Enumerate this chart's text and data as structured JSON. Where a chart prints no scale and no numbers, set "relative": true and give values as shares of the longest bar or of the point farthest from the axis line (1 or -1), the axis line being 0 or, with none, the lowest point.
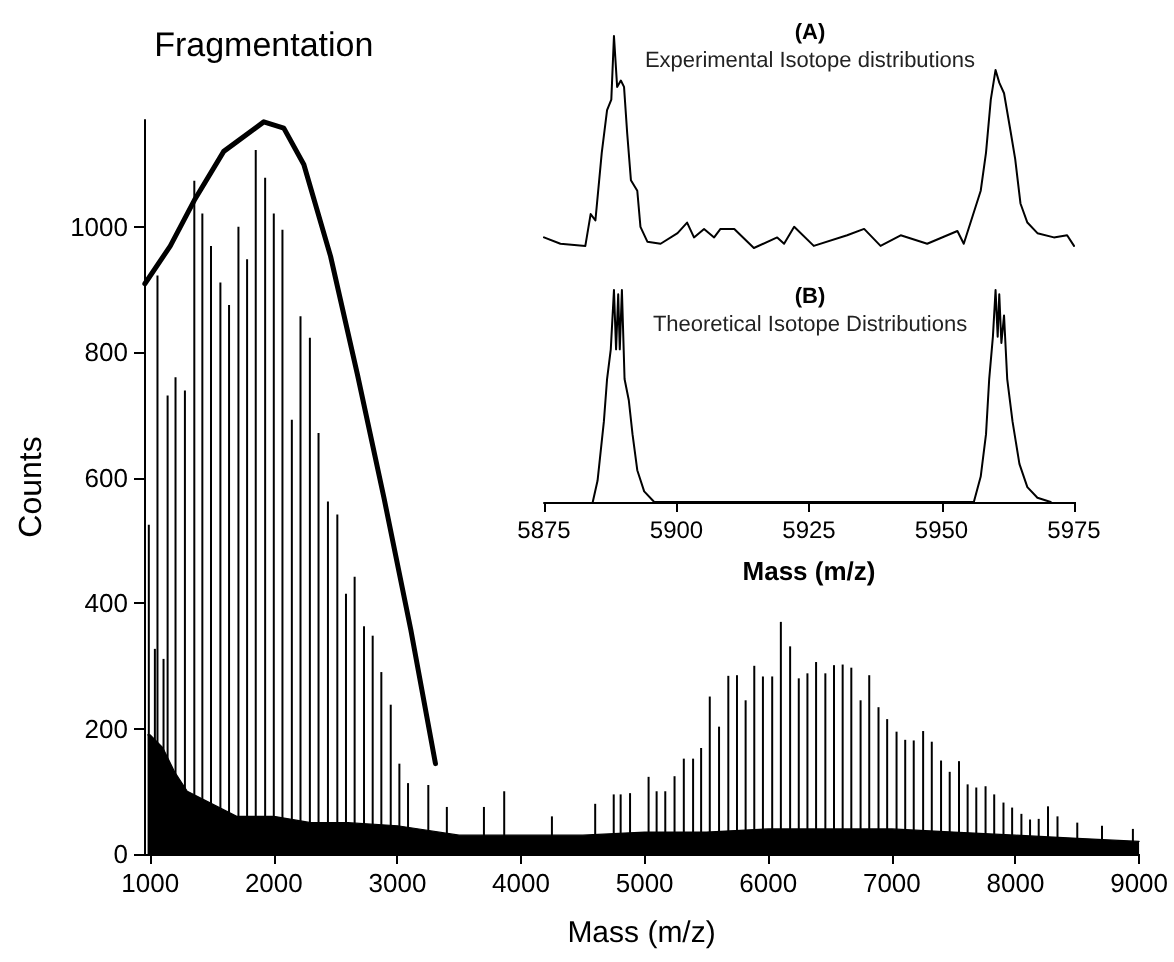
{
  "chart_data": [
    {
      "type": "bar",
      "xlabel": "Mass (m/z)",
      "ylabel": "Counts",
      "xlim": [
        950,
        9000
      ],
      "ylim": [
        0,
        1170
      ],
      "xticks": [
        1000,
        2000,
        3000,
        4000,
        5000,
        6000,
        7000,
        8000,
        9000
      ],
      "yticks": [
        0,
        200,
        400,
        600,
        800,
        1000
      ],
      "grid": false,
      "marker": "none",
      "annotations": [
        {
          "text": "Fragmentation",
          "x": 1919,
          "y": 1167
        }
      ],
      "series": [
        {
          "type": "area",
          "color": "#000000",
          "x": [
            980,
            1000,
            1100,
            1200,
            1300,
            1500,
            1700,
            2000,
            2300,
            2600,
            3000,
            3500,
            4000,
            4500,
            5000,
            5500,
            6000,
            6500,
            7000,
            7500,
            8000,
            8500,
            9000
          ],
          "values": [
            190,
            190,
            170,
            130,
            100,
            80,
            60,
            60,
            50,
            50,
            45,
            30,
            30,
            30,
            35,
            35,
            40,
            40,
            40,
            35,
            30,
            25,
            20
          ]
        },
        {
          "color": "#000000",
          "x": [
            989,
            1038,
            1059,
            1108,
            1141,
            1205,
            1281,
            1357,
            1422,
            1492,
            1568,
            1638,
            1714,
            1784,
            1854,
            1930,
            2000,
            2070,
            2146,
            2216,
            2292,
            2362,
            2438,
            2514,
            2584,
            2654,
            2730,
            2800,
            2870,
            2946,
            3016,
            3086,
            3250,
            3400,
            3700,
            3864,
            4250,
            4600,
            4750,
            4806,
            4882,
            5032,
            5097,
            5167,
            5242,
            5317,
            5392,
            5457,
            5527,
            5602,
            5677,
            5747,
            5817,
            5887,
            5957,
            6032,
            6102,
            6177,
            6247,
            6317,
            6387,
            6462,
            6532,
            6602,
            6672,
            6747,
            6817,
            6892,
            6962,
            7038,
            7108,
            7177,
            7253,
            7323,
            7398,
            7468,
            7543,
            7613,
            7683,
            7758,
            7828,
            7903,
            7973,
            8048,
            8118,
            8188,
            8263,
            8340,
            8500,
            8700,
            8950
          ],
          "values": [
            525,
            327,
            922,
            311,
            731,
            760,
            739,
            1073,
            1021,
            969,
            911,
            875,
            1000,
            948,
            1122,
            1078,
            1021,
            995,
            692,
            857,
            823,
            671,
            562,
            541,
            415,
            442,
            363,
            348,
            290,
            238,
            144,
            113,
            110,
            75,
            75,
            100,
            60,
            80,
            95,
            95,
            97,
            123,
            100,
            100,
            124,
            152,
            152,
            169,
            251,
            203,
            284,
            285,
            245,
            300,
            283,
            283,
            370,
            331,
            280,
            288,
            306,
            288,
            301,
            302,
            297,
            245,
            285,
            234,
            215,
            195,
            182,
            181,
            196,
            179,
            149,
            131,
            148,
            111,
            106,
            108,
            95,
            82,
            74,
            64,
            55,
            56,
            76,
            60,
            50,
            45,
            40
          ]
        },
        {
          "type": "line",
          "color": "#000000",
          "x": [
            957,
            1162,
            1357,
            1595,
            1919,
            2081,
            2243,
            2459,
            2676,
            2892,
            3108,
            3308
          ],
          "values": [
            909,
            969,
            1042,
            1120,
            1167,
            1157,
            1099,
            953,
            765,
            567,
            358,
            144
          ]
        }
      ]
    },
    {
      "type": "line",
      "title": "(A)",
      "subtitle": "Experimental Isotope distributions",
      "relative": true,
      "tick_labels": false,
      "grid": false,
      "marker": "none",
      "xlim": [
        5875,
        5975
      ],
      "series": [
        {
          "color": "#000000",
          "x": [
            5875.0,
            5878.1,
            5882.8,
            5883.8,
            5884.7,
            5885.9,
            5886.9,
            5887.7,
            5888.2,
            5888.8,
            5889.5,
            5890.1,
            5890.7,
            5891.4,
            5892.6,
            5893.2,
            5894.5,
            5897.0,
            5900.2,
            5902.0,
            5903.3,
            5905.2,
            5907.1,
            5908.3,
            5910.9,
            5914.6,
            5919.0,
            5920.3,
            5922.2,
            5925.9,
            5932.2,
            5935.4,
            5938.5,
            5942.3,
            5947.3,
            5953.0,
            5954.2,
            5957.4,
            5958.4,
            5959.3,
            5960.2,
            5960.9,
            5961.8,
            5963.1,
            5963.9,
            5964.9,
            5966.2,
            5968.1,
            5971.2,
            5973.7,
            5975.0
          ],
          "values": [
            0.05,
            0.02,
            0.01,
            0.16,
            0.13,
            0.45,
            0.65,
            0.7,
            1.0,
            0.76,
            0.79,
            0.76,
            0.54,
            0.32,
            0.27,
            0.1,
            0.03,
            0.02,
            0.07,
            0.12,
            0.05,
            0.09,
            0.05,
            0.09,
            0.09,
            0.0,
            0.05,
            0.02,
            0.1,
            0.01,
            0.06,
            0.09,
            0.01,
            0.06,
            0.02,
            0.08,
            0.02,
            0.27,
            0.45,
            0.7,
            0.84,
            0.78,
            0.73,
            0.54,
            0.42,
            0.21,
            0.12,
            0.07,
            0.05,
            0.06,
            0.01
          ]
        }
      ]
    },
    {
      "type": "line",
      "title": "(B)",
      "subtitle": "Theoretical Isotope Distributions",
      "xlabel": "Mass (m/z)",
      "relative": true,
      "tick_labels": "x",
      "grid": false,
      "marker": "none",
      "xlim": [
        5875,
        5975
      ],
      "xticks": [
        5875,
        5900,
        5925,
        5950,
        5975
      ],
      "series": [
        {
          "color": "#000000",
          "x": [
            5884.2,
            5885.1,
            5886.3,
            5886.9,
            5887.6,
            5888.2,
            5888.6,
            5889.0,
            5889.3,
            5889.7,
            5890.2,
            5891.0,
            5891.7,
            5892.6,
            5893.9,
            5895.8,
            5956.1,
            5957.4,
            5958.4,
            5959.0,
            5959.7,
            5960.2,
            5960.6,
            5960.9,
            5961.3,
            5961.8,
            5962.4,
            5963.4,
            5964.7,
            5966.2,
            5968.1,
            5970.6
          ],
          "values": [
            0,
            0.1,
            0.38,
            0.58,
            0.72,
            1.0,
            0.72,
            0.98,
            0.72,
            1.0,
            0.58,
            0.48,
            0.32,
            0.15,
            0.05,
            0,
            0,
            0.12,
            0.32,
            0.58,
            0.78,
            1.0,
            0.78,
            0.98,
            0.75,
            0.88,
            0.58,
            0.38,
            0.18,
            0.07,
            0.02,
            0
          ]
        }
      ]
    }
  ]
}
